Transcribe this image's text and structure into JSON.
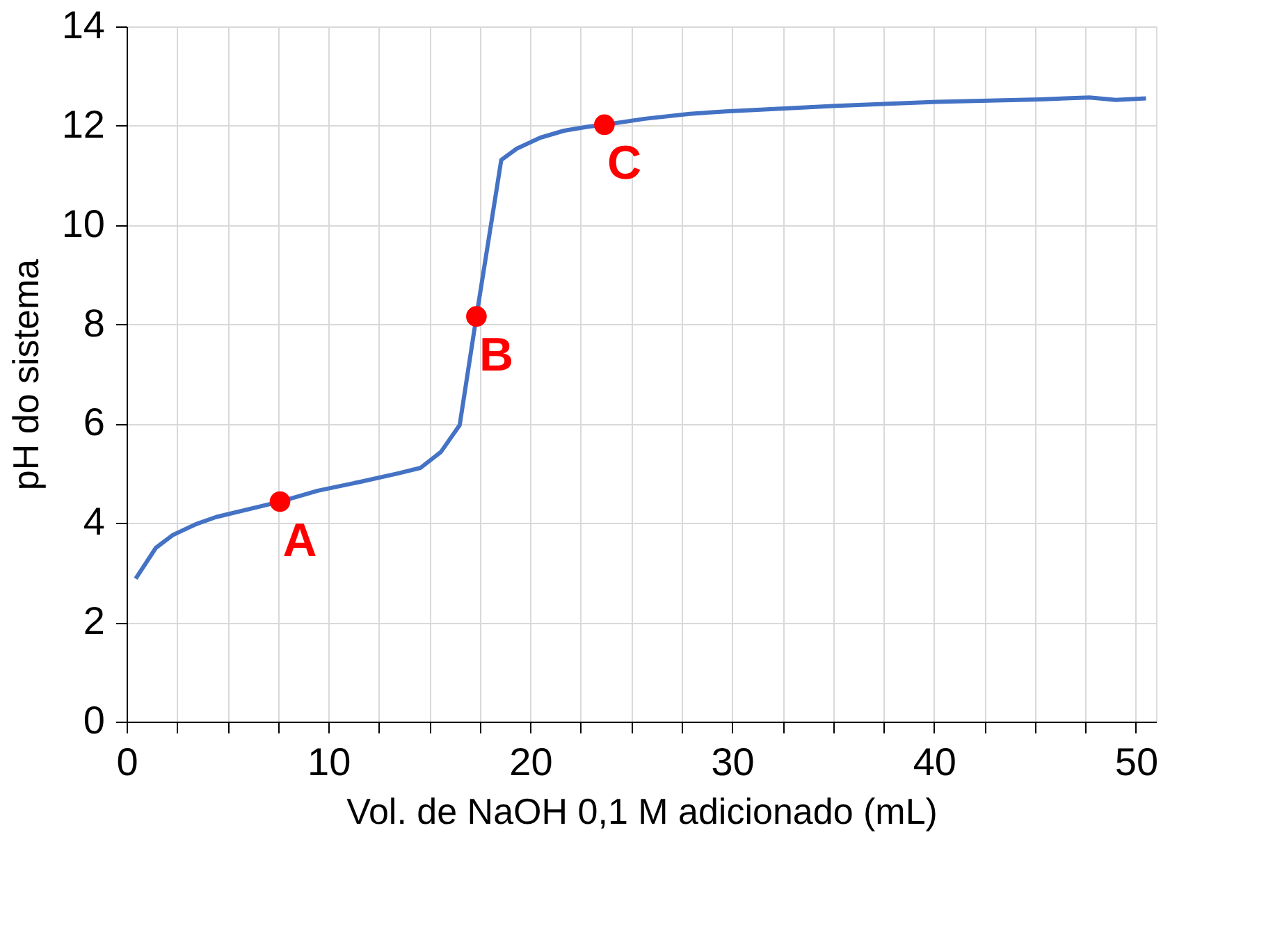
{
  "chart_data": {
    "type": "line",
    "xlabel": "Vol. de NaOH 0,1 M adicionado (mL)",
    "ylabel": "pH do sistema",
    "series": [
      {
        "color": "#4472c4",
        "x": [
          0.45,
          1.45,
          2.3,
          3.4,
          4.43,
          7.6,
          9.47,
          11.59,
          13.46,
          14.56,
          15.57,
          16.5,
          17.33,
          18.56,
          19.33,
          20.5,
          21.67,
          22.85,
          23.67,
          25.66,
          27.9,
          29.7,
          35.16,
          40.16,
          45.25,
          47.7,
          49.0,
          50.5
        ],
        "values": [
          2.88,
          3.5,
          3.76,
          3.97,
          4.12,
          4.43,
          4.65,
          4.83,
          5.0,
          5.11,
          5.43,
          5.97,
          8.16,
          11.31,
          11.54,
          11.76,
          11.9,
          11.98,
          12.02,
          12.14,
          12.24,
          12.29,
          12.4,
          12.48,
          12.53,
          12.57,
          12.52,
          12.55
        ]
      },
      {
        "type": "scatter",
        "color": "#ff0000",
        "marker": "circle",
        "x": [
          7.6,
          17.33,
          23.67
        ],
        "values": [
          4.43,
          8.16,
          12.02
        ]
      }
    ],
    "annotations": [
      {
        "text": "A",
        "x": 7.6,
        "y": 4.43
      },
      {
        "text": "B",
        "x": 17.33,
        "y": 8.16
      },
      {
        "text": "C",
        "x": 23.67,
        "y": 12.02
      }
    ],
    "xlim": [
      0,
      51
    ],
    "ylim": [
      0,
      14
    ],
    "xticks": [
      0,
      {
        "value": 2.5,
        "label": null
      },
      {
        "value": 5,
        "label": null
      },
      {
        "value": 7.5,
        "label": null
      },
      10,
      {
        "value": 12.5,
        "label": null
      },
      {
        "value": 15,
        "label": null
      },
      {
        "value": 17.5,
        "label": null
      },
      20,
      {
        "value": 22.5,
        "label": null
      },
      {
        "value": 25,
        "label": null
      },
      {
        "value": 27.5,
        "label": null
      },
      30,
      {
        "value": 32.5,
        "label": null
      },
      {
        "value": 35,
        "label": null
      },
      {
        "value": 37.5,
        "label": null
      },
      40,
      {
        "value": 42.5,
        "label": null
      },
      {
        "value": 45,
        "label": null
      },
      {
        "value": 47.5,
        "label": null
      },
      50
    ],
    "yticks": [
      0,
      2,
      4,
      6,
      8,
      10,
      12,
      14
    ],
    "grid": true
  }
}
